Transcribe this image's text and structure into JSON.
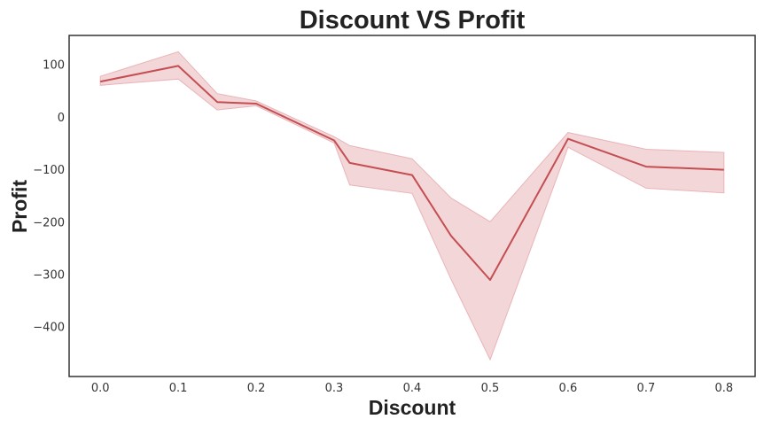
{
  "chart_data": {
    "type": "line",
    "title": "Discount VS Profit",
    "xlabel": "Discount",
    "ylabel": "Profit",
    "xlim": [
      -0.04,
      0.84
    ],
    "ylim": [
      -495,
      155
    ],
    "x_ticks": [
      0.0,
      0.1,
      0.2,
      0.3,
      0.4,
      0.5,
      0.6,
      0.7,
      0.8
    ],
    "x_tick_labels": [
      "0.0",
      "0.1",
      "0.2",
      "0.3",
      "0.4",
      "0.5",
      "0.6",
      "0.7",
      "0.8"
    ],
    "y_ticks": [
      100,
      0,
      -100,
      -200,
      -300,
      -400
    ],
    "y_tick_labels": [
      "100",
      "0",
      "−100",
      "−200",
      "−300",
      "−400"
    ],
    "grid": false,
    "series": [
      {
        "x": [
          0.0,
          0.1,
          0.15,
          0.2,
          0.3,
          0.32,
          0.4,
          0.45,
          0.5,
          0.6,
          0.7,
          0.8
        ],
        "values": [
          67,
          97,
          28,
          25,
          -45,
          -88,
          -111,
          -227,
          -311,
          -42,
          -95,
          -101
        ],
        "ci_upper": [
          77,
          124,
          44,
          30,
          -38,
          -55,
          -80,
          -155,
          -200,
          -30,
          -62,
          -68
        ],
        "ci_lower": [
          60,
          72,
          13,
          21,
          -50,
          -130,
          -146,
          -310,
          -463,
          -58,
          -136,
          -145
        ],
        "line_color": "#c44e52",
        "band_color": "#e9b4b8"
      }
    ]
  }
}
